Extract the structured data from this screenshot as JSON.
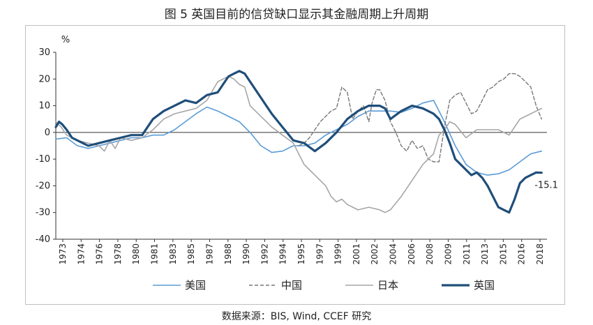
{
  "title": "图 5 英国目前的信贷缺口显示其金融周期上升周期",
  "source": "数据来源：BIS, Wind, CCEF 研究",
  "chart_data": {
    "type": "line",
    "ylabel": "%",
    "ylim": [
      -40,
      30
    ],
    "yticks": [
      30,
      20,
      10,
      0,
      -10,
      -20,
      -30,
      -40
    ],
    "xlim": [
      1973,
      2018.5
    ],
    "xticks": [
      "1973",
      "1974",
      "1976",
      "1978",
      "1980",
      "1981",
      "1983",
      "1985",
      "1987",
      "1988",
      "1990",
      "1992",
      "1994",
      "1995",
      "1997",
      "1999",
      "2001",
      "2002",
      "2004",
      "2006",
      "2008",
      "2009",
      "2011",
      "2013",
      "2015",
      "2016",
      "2018"
    ],
    "end_label": "-15.1",
    "series": [
      {
        "name": "美国",
        "color": "#5b9bd5",
        "style": "solid",
        "width": 1.6,
        "x": [
          1973,
          1974,
          1975,
          1976,
          1977,
          1978,
          1979,
          1980,
          1981,
          1982,
          1983,
          1984,
          1985,
          1986,
          1987,
          1988,
          1989,
          1990,
          1991,
          1992,
          1993,
          1994,
          1995,
          1996,
          1997,
          1998,
          1999,
          2000,
          2001,
          2002,
          2003,
          2004,
          2005,
          2006,
          2007,
          2008,
          2009,
          2010,
          2011,
          2012,
          2013,
          2014,
          2015,
          2016,
          2017,
          2018
        ],
        "y": [
          -2.5,
          -2,
          -5,
          -6,
          -5,
          -4,
          -3,
          -2,
          -2,
          -1,
          -1,
          1,
          4,
          7,
          9.5,
          8,
          6,
          4,
          0,
          -5,
          -7.5,
          -7,
          -5,
          -5,
          -4,
          -1,
          1,
          3,
          6,
          8,
          8,
          8,
          7.5,
          9,
          11,
          12,
          4,
          -5,
          -12,
          -15,
          -16,
          -15.5,
          -14,
          -11,
          -8,
          -7
        ]
      },
      {
        "name": "中国",
        "color": "#777777",
        "style": "dash",
        "width": 1.4,
        "x": [
          1995.5,
          1996,
          1996.5,
          1997,
          1997.5,
          1998,
          1998.5,
          1999,
          1999.5,
          2000,
          2000.5,
          2001,
          2001.5,
          2002,
          2002.3,
          2002.7,
          2003,
          2003.5,
          2004,
          2004.5,
          2005,
          2005.5,
          2006,
          2006.5,
          2007,
          2007.5,
          2008,
          2008.5,
          2009,
          2009.5,
          2010,
          2010.5,
          2011,
          2011.5,
          2012,
          2012.5,
          2013,
          2013.5,
          2014,
          2014.5,
          2015,
          2015.5,
          2016,
          2016.5,
          2017,
          2017.5,
          2018
        ],
        "y": [
          -5,
          -4,
          -2,
          1,
          4,
          6,
          8,
          9,
          17,
          15,
          5,
          8,
          10,
          4,
          11,
          16,
          16,
          12,
          4,
          0,
          -5,
          -7,
          -3,
          -6,
          -5,
          -10,
          -11,
          -11,
          2,
          12,
          14,
          15,
          11,
          7,
          8,
          12,
          16,
          17,
          19,
          20,
          22,
          22,
          21,
          19,
          17,
          10,
          5
        ]
      },
      {
        "name": "日本",
        "color": "#a6a6a6",
        "style": "solid",
        "width": 1.6,
        "x": [
          1973,
          1973.5,
          1974,
          1975,
          1976,
          1977,
          1977.5,
          1978,
          1978.5,
          1979,
          1980,
          1981,
          1982,
          1983,
          1984,
          1985,
          1986,
          1987,
          1988,
          1988.5,
          1989,
          1989.5,
          1990,
          1990.5,
          1991,
          1992,
          1993,
          1994,
          1995,
          1995.5,
          1996,
          1996.5,
          1997,
          1997.5,
          1998,
          1998.5,
          1999,
          1999.5,
          2000,
          2001,
          2002,
          2003,
          2003.5,
          2004,
          2005,
          2006,
          2007,
          2008,
          2008.5,
          2009,
          2009.5,
          2010,
          2011,
          2012,
          2013,
          2014,
          2015,
          2016,
          2017,
          2018
        ],
        "y": [
          4,
          2,
          -1,
          -3,
          -4,
          -5,
          -7,
          -3,
          -6,
          -2,
          -3,
          -2,
          1,
          5,
          7,
          8,
          9,
          12,
          19,
          20,
          21,
          20,
          18,
          17,
          10,
          6,
          2,
          -1,
          -4,
          -8,
          -12,
          -14,
          -16,
          -18,
          -20,
          -24,
          -26,
          -25,
          -27,
          -29,
          -28,
          -29,
          -30,
          -29,
          -24,
          -18,
          -12,
          -8,
          -1,
          1,
          4,
          3,
          -2,
          1,
          1,
          1,
          -1,
          5,
          7,
          9
        ]
      },
      {
        "name": "英国",
        "color": "#1f4e79",
        "style": "solid",
        "width": 3.2,
        "x": [
          1973,
          1973.3,
          1973.6,
          1974,
          1974.5,
          1975,
          1975.5,
          1976,
          1977,
          1978,
          1979,
          1980,
          1981,
          1981.5,
          1982,
          1983,
          1984,
          1985,
          1986,
          1987,
          1988,
          1988.5,
          1989,
          1989.5,
          1990,
          1990.5,
          1991,
          1992,
          1993,
          1994,
          1995,
          1996,
          1997,
          1998,
          1999,
          2000,
          2001,
          2002,
          2003,
          2003.5,
          2004,
          2005,
          2006,
          2007,
          2008,
          2008.5,
          2009,
          2009.5,
          2010,
          2011,
          2011.5,
          2012,
          2012.5,
          2013,
          2013.5,
          2014,
          2014.5,
          2015,
          2015.5,
          2016,
          2016.5,
          2017,
          2017.5,
          2018
        ],
        "y": [
          2,
          4,
          3,
          1,
          -2,
          -3,
          -4,
          -5,
          -4,
          -3,
          -2,
          -1,
          -1,
          2,
          5,
          8,
          10,
          12,
          11,
          14,
          15,
          18,
          21,
          22,
          23,
          22,
          19,
          13,
          7,
          2,
          -3,
          -4,
          -7,
          -4,
          0,
          5,
          8,
          10,
          10,
          9,
          5,
          8,
          10,
          9,
          7,
          5,
          1,
          -4,
          -10,
          -14,
          -16,
          -15,
          -17,
          -20,
          -24,
          -28,
          -29,
          -30,
          -25,
          -19,
          -17,
          -16,
          -15,
          -15.1
        ]
      }
    ]
  }
}
